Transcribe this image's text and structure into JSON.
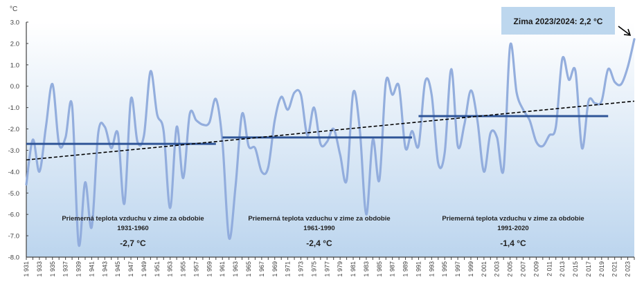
{
  "chart_data": {
    "type": "line",
    "title": "",
    "xlabel": "",
    "ylabel": "°C",
    "ylim": [
      -8.0,
      3.0
    ],
    "y_ticks": [
      "3.0",
      "2.0",
      "1.0",
      "0.0",
      "-1.0",
      "-2.0",
      "-3.0",
      "-4.0",
      "-5.0",
      "-6.0",
      "-7.0",
      "-8.0"
    ],
    "y_tick_values": [
      3,
      2,
      1,
      0,
      -1,
      -2,
      -3,
      -4,
      -5,
      -6,
      -7,
      -8
    ],
    "x_start": 1931,
    "x_end": 2024,
    "x_tick_labels": [
      "1 931",
      "1 933",
      "1 935",
      "1 937",
      "1 939",
      "1 941",
      "1 943",
      "1 945",
      "1 947",
      "1 949",
      "1 951",
      "1 953",
      "1 955",
      "1 957",
      "1 959",
      "1 961",
      "1 963",
      "1 965",
      "1 967",
      "1 969",
      "1 971",
      "1 973",
      "1 975",
      "1 977",
      "1 979",
      "1 981",
      "1 983",
      "1 985",
      "1 987",
      "1 989",
      "1 991",
      "1 993",
      "1 995",
      "1 997",
      "1 999",
      "2 001",
      "2 003",
      "2 005",
      "2 007",
      "2 009",
      "2 011",
      "2 013",
      "2 015",
      "2 017",
      "2 019",
      "2 021",
      "2 023"
    ],
    "grid": false,
    "series": [
      {
        "name": "Priemerná teplota vzduchu v zime",
        "color": "#8eaadb",
        "style": "smooth",
        "x": [
          1931,
          1932,
          1933,
          1934,
          1935,
          1936,
          1937,
          1938,
          1939,
          1940,
          1941,
          1942,
          1943,
          1944,
          1945,
          1946,
          1947,
          1948,
          1949,
          1950,
          1951,
          1952,
          1953,
          1954,
          1955,
          1956,
          1957,
          1958,
          1959,
          1960,
          1961,
          1962,
          1963,
          1964,
          1965,
          1966,
          1967,
          1968,
          1969,
          1970,
          1971,
          1972,
          1973,
          1974,
          1975,
          1976,
          1977,
          1978,
          1979,
          1980,
          1981,
          1982,
          1983,
          1984,
          1985,
          1986,
          1987,
          1988,
          1989,
          1990,
          1991,
          1992,
          1993,
          1994,
          1995,
          1996,
          1997,
          1998,
          1999,
          2000,
          2001,
          2002,
          2003,
          2004,
          2005,
          2006,
          2007,
          2008,
          2009,
          2010,
          2011,
          2012,
          2013,
          2014,
          2015,
          2016,
          2017,
          2018,
          2019,
          2020,
          2021,
          2022,
          2023,
          2024
        ],
        "values": [
          -4.6,
          -2.5,
          -4.0,
          -1.9,
          0.1,
          -2.7,
          -2.4,
          -0.9,
          -7.4,
          -4.5,
          -6.6,
          -2.2,
          -1.9,
          -2.9,
          -2.2,
          -5.5,
          -0.6,
          -2.6,
          -2.3,
          0.7,
          -1.3,
          -2.1,
          -5.7,
          -1.9,
          -4.3,
          -1.3,
          -1.6,
          -1.8,
          -1.7,
          -0.6,
          -2.6,
          -7.1,
          -4.7,
          -1.3,
          -2.8,
          -2.9,
          -4.0,
          -3.8,
          -1.6,
          -0.5,
          -1.1,
          -0.3,
          -0.4,
          -2.3,
          -1.0,
          -2.7,
          -2.6,
          -2.0,
          -3.2,
          -4.4,
          -0.3,
          -2.0,
          -6.0,
          -2.5,
          -4.4,
          0.2,
          -0.4,
          0.0,
          -2.9,
          -2.1,
          -2.8,
          0.2,
          -0.4,
          -3.6,
          -3.1,
          0.8,
          -2.8,
          -1.8,
          -0.2,
          -1.6,
          -4.0,
          -2.2,
          -2.4,
          -3.9,
          1.9,
          -0.3,
          -1.1,
          -1.6,
          -2.6,
          -2.8,
          -2.3,
          -1.9,
          1.3,
          0.3,
          0.7,
          -2.9,
          -0.7,
          -0.8,
          -0.7,
          0.8,
          0.2,
          0.1,
          0.9,
          2.2
        ]
      }
    ],
    "period_means": [
      {
        "title": "Priemerná teplota vzduchu v zime za obdobie",
        "period": "1931-1960",
        "value_label": "-2,7 °C",
        "value": -2.7,
        "x_from": 1931,
        "x_to": 1960
      },
      {
        "title": "Priemerná teplota vzduchu v zime za obdobie",
        "period": "1961-1990",
        "value_label": "-2,4 °C",
        "value": -2.4,
        "x_from": 1961,
        "x_to": 1990
      },
      {
        "title": "Priemerná teplota vzduchu v zime za obdobie",
        "period": "1991-2020",
        "value_label": "-1,4 °C",
        "value": -1.4,
        "x_from": 1991,
        "x_to": 2020
      }
    ],
    "mean_line_color": "#2f5597",
    "trend": {
      "style": "dashed",
      "color": "#000000",
      "y_start": -3.45,
      "y_end": -0.7,
      "x_from": 1931,
      "x_to": 2024
    },
    "annotation": {
      "text": "Zima 2023/2024: 2,2 °C",
      "x": 2024,
      "y": 2.2,
      "box_color": "#bdd7ee"
    },
    "background_gradient": [
      "#ffffff",
      "#bdd7ee"
    ]
  }
}
